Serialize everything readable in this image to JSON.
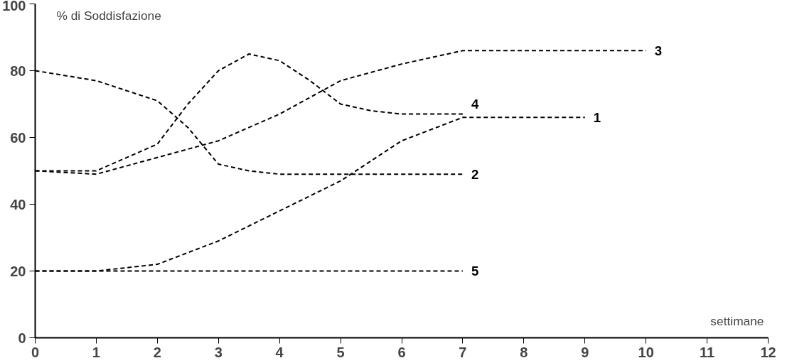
{
  "chart_data": {
    "type": "line",
    "xlabel": "settimane",
    "ylabel": "% di Soddisfazione",
    "xlim": [
      0,
      12
    ],
    "ylim": [
      0,
      100
    ],
    "xticks": [
      0,
      1,
      2,
      3,
      4,
      5,
      6,
      7,
      8,
      9,
      10,
      11,
      12
    ],
    "yticks": [
      0,
      20,
      40,
      60,
      80,
      100
    ],
    "grid": false,
    "marker": "none",
    "line_style": "dashed",
    "series": [
      {
        "name": "1",
        "color": "#000000",
        "x": [
          0,
          1,
          2,
          3,
          4,
          5,
          6,
          7,
          8,
          9
        ],
        "values": [
          20,
          20,
          22,
          29,
          38,
          47,
          59,
          66,
          66,
          66
        ]
      },
      {
        "name": "2",
        "color": "#000000",
        "x": [
          0,
          1,
          2,
          2.5,
          3,
          3.5,
          4,
          5,
          6,
          7
        ],
        "values": [
          80,
          77,
          71,
          63,
          52,
          50,
          49,
          49,
          49,
          49
        ]
      },
      {
        "name": "3",
        "color": "#000000",
        "x": [
          0,
          1,
          2,
          3,
          4,
          5,
          6,
          7,
          8,
          9,
          10
        ],
        "values": [
          50,
          49,
          54,
          59,
          67,
          77,
          82,
          86,
          86,
          86,
          86
        ]
      },
      {
        "name": "4",
        "color": "#000000",
        "x": [
          0,
          1,
          2,
          2.5,
          3,
          3.5,
          4,
          4.5,
          5,
          5.5,
          6,
          7
        ],
        "values": [
          50,
          50,
          58,
          70,
          80,
          85,
          83,
          77,
          70,
          68,
          67,
          67
        ]
      },
      {
        "name": "5",
        "color": "#000000",
        "x": [
          0,
          1,
          2,
          3,
          4,
          5,
          6,
          7
        ],
        "values": [
          20,
          20,
          20,
          20,
          20,
          20,
          20,
          20
        ]
      }
    ]
  }
}
